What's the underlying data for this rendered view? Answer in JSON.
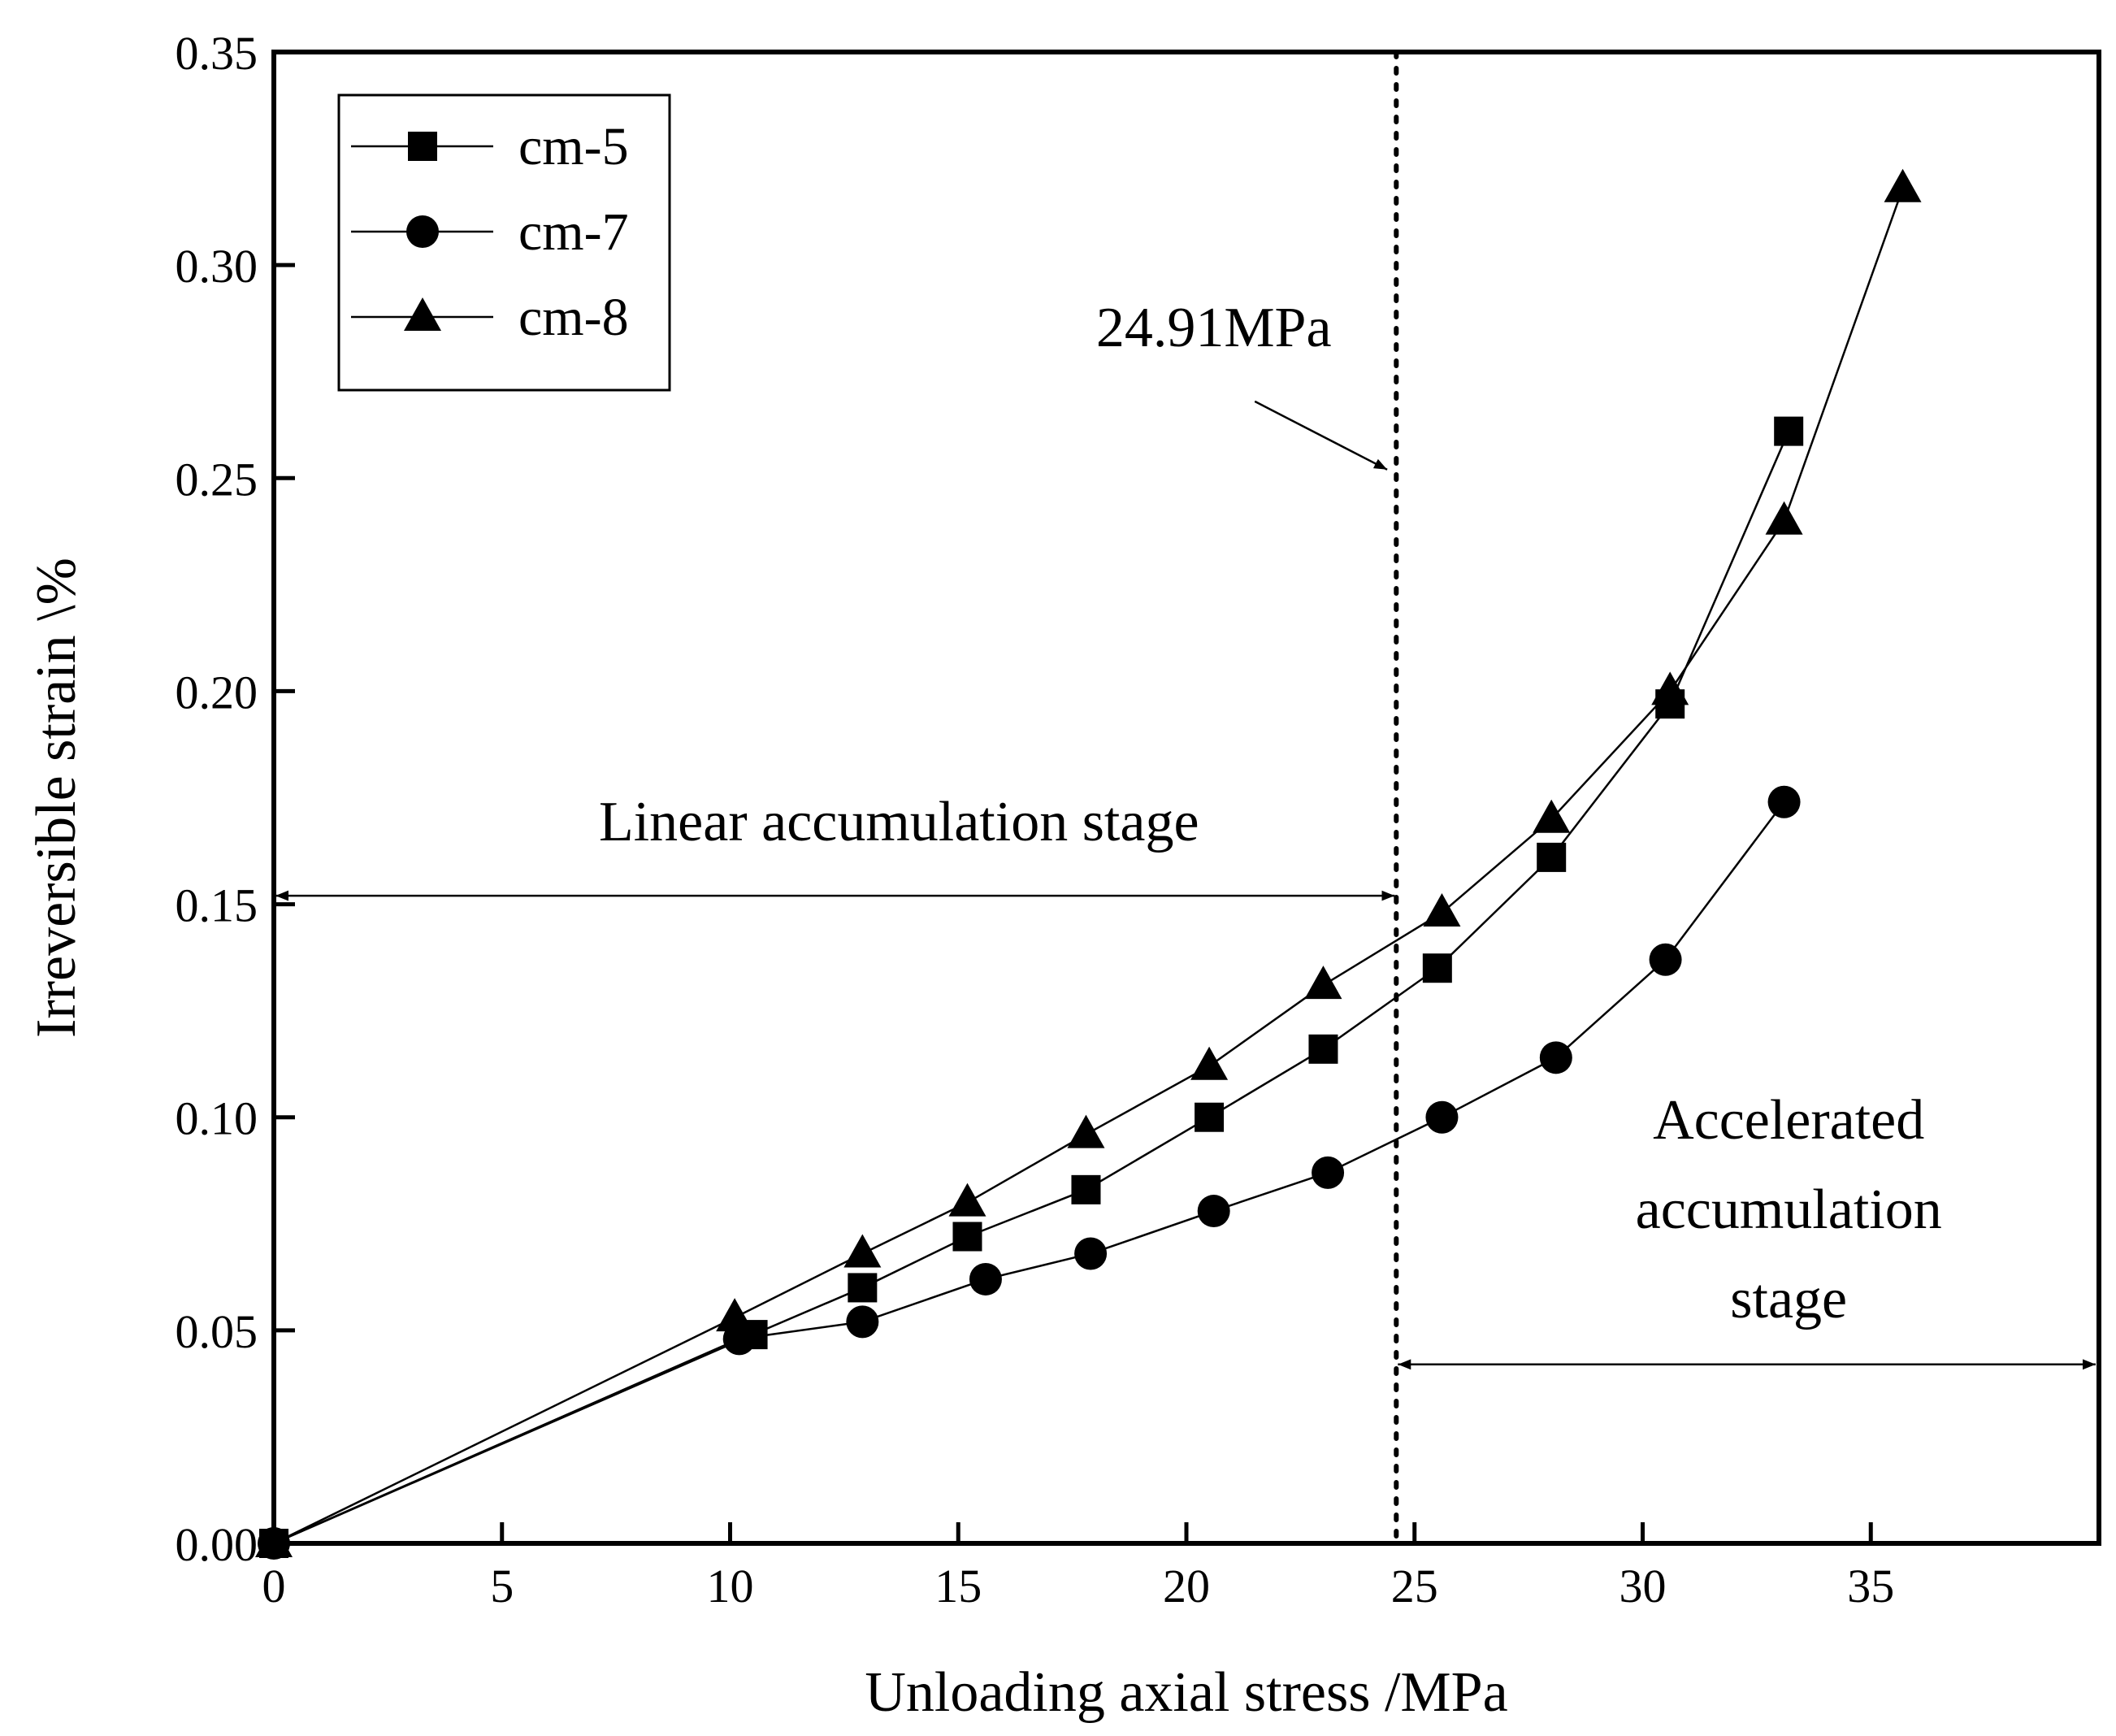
{
  "chart_data": {
    "type": "line",
    "xlabel": "Unloading axial stress /MPa",
    "ylabel": "Irreversible strain \\%",
    "xlim": [
      0,
      40
    ],
    "ylim": [
      0,
      0.35
    ],
    "xticks": [
      0,
      5,
      10,
      15,
      20,
      25,
      30,
      35
    ],
    "xtick_labels": [
      "0",
      "5",
      "10",
      "15",
      "20",
      "25",
      "30",
      "35"
    ],
    "yticks": [
      0,
      0.05,
      0.1,
      0.15,
      0.2,
      0.25,
      0.3,
      0.35
    ],
    "ytick_labels": [
      "0.00",
      "0.05",
      "0.10",
      "0.15",
      "0.20",
      "0.25",
      "0.30",
      "0.35"
    ],
    "grid": false,
    "legend_position": "top-left",
    "series": [
      {
        "name": "cm-5",
        "marker": "square",
        "x": [
          0,
          10.5,
          12.9,
          15.2,
          17.8,
          20.5,
          23.0,
          25.5,
          28.0,
          30.6,
          33.2
        ],
        "y": [
          0.0,
          0.049,
          0.06,
          0.072,
          0.083,
          0.1,
          0.116,
          0.135,
          0.161,
          0.197,
          0.261
        ]
      },
      {
        "name": "cm-7",
        "marker": "circle",
        "x": [
          0,
          10.2,
          12.9,
          15.6,
          17.9,
          20.6,
          23.1,
          25.6,
          28.1,
          30.5,
          33.1
        ],
        "y": [
          0.0,
          0.048,
          0.052,
          0.062,
          0.068,
          0.078,
          0.087,
          0.1,
          0.114,
          0.137,
          0.174
        ]
      },
      {
        "name": "cm-8",
        "marker": "triangle",
        "x": [
          0,
          10.1,
          12.9,
          15.2,
          17.8,
          20.5,
          23.0,
          25.6,
          28.0,
          30.6,
          33.1,
          35.7
        ],
        "y": [
          0.0,
          0.053,
          0.068,
          0.08,
          0.096,
          0.112,
          0.131,
          0.148,
          0.17,
          0.2,
          0.24,
          0.318
        ]
      }
    ],
    "reference_line": {
      "x": 24.6,
      "style": "dotted"
    },
    "annotations": {
      "threshold_label": "24.91MPa",
      "linear_stage": "Linear accumulation stage",
      "accelerated_stage_lines": [
        "Accelerated",
        "accumulation",
        "stage"
      ]
    },
    "arrows": {
      "threshold_pointer": {
        "from": [
          21.5,
          0.268
        ],
        "to": [
          24.4,
          0.252
        ]
      },
      "linear_span": {
        "y": 0.152,
        "x_from": 0,
        "x_to": 24.6
      },
      "accelerated_span": {
        "y": 0.042,
        "x_from": 24.6,
        "x_to": 40
      }
    },
    "text_anchors": {
      "threshold_label": {
        "x": 20.6,
        "y": 0.281
      },
      "linear_stage": {
        "x": 13.7,
        "y": 0.165
      },
      "accelerated_stage": {
        "x": 33.2,
        "y": 0.095,
        "line_step": 0.021
      }
    }
  }
}
